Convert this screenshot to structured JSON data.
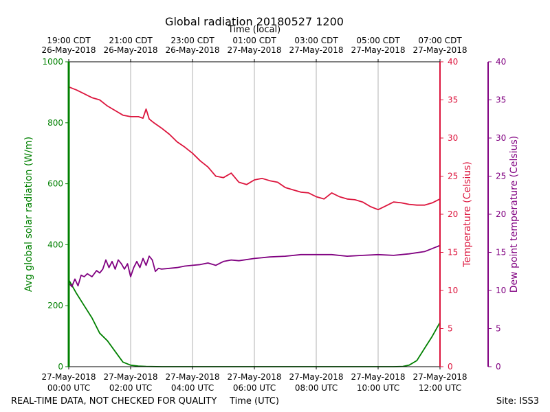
{
  "chart_data": {
    "type": "line",
    "title": "Global radiation 20180527 1200",
    "top_axis_title": "Time (local)",
    "xlabel": "Time (UTC)",
    "footer_left": "REAL-TIME DATA, NOT CHECKED FOR QUALITY",
    "footer_right": "Site: ISS3",
    "x_range_hours": [
      0,
      12
    ],
    "bottom_ticks": [
      {
        "h": 0,
        "date": "27-May-2018",
        "time": "00:00 UTC"
      },
      {
        "h": 2,
        "date": "27-May-2018",
        "time": "02:00 UTC"
      },
      {
        "h": 4,
        "date": "27-May-2018",
        "time": "04:00 UTC"
      },
      {
        "h": 6,
        "date": "27-May-2018",
        "time": "06:00 UTC"
      },
      {
        "h": 8,
        "date": "27-May-2018",
        "time": "08:00 UTC"
      },
      {
        "h": 10,
        "date": "27-May-2018",
        "time": "10:00 UTC"
      },
      {
        "h": 12,
        "date": "27-May-2018",
        "time": "12:00 UTC"
      }
    ],
    "top_ticks": [
      {
        "h": 0,
        "time": "19:00 CDT",
        "date": "26-May-2018"
      },
      {
        "h": 2,
        "time": "21:00 CDT",
        "date": "26-May-2018"
      },
      {
        "h": 4,
        "time": "23:00 CDT",
        "date": "26-May-2018"
      },
      {
        "h": 6,
        "time": "01:00 CDT",
        "date": "27-May-2018"
      },
      {
        "h": 8,
        "time": "03:00 CDT",
        "date": "27-May-2018"
      },
      {
        "h": 10,
        "time": "05:00 CDT",
        "date": "27-May-2018"
      },
      {
        "h": 12,
        "time": "07:00 CDT",
        "date": "27-May-2018"
      }
    ],
    "axes": {
      "radiation": {
        "label": "Avg global solar radiation (W/m)",
        "ylim": [
          0,
          1000
        ],
        "ticks": [
          0,
          200,
          400,
          600,
          800,
          1000
        ],
        "color": "#008000"
      },
      "temperature": {
        "label": "Temperature (Celsius)",
        "ylim": [
          0,
          40
        ],
        "ticks": [
          0,
          5,
          10,
          15,
          20,
          25,
          30,
          35,
          40
        ],
        "color": "#dc143c"
      },
      "dewpoint": {
        "label": "Dew point temperature (Celsius)",
        "ylim": [
          0,
          40
        ],
        "ticks": [
          0,
          5,
          10,
          15,
          20,
          25,
          30,
          35,
          40
        ],
        "color": "#800080"
      }
    },
    "series": [
      {
        "name": "Avg global solar radiation",
        "axis": "radiation",
        "color": "#008000",
        "x": [
          0,
          0.25,
          0.5,
          0.75,
          1.0,
          1.25,
          1.5,
          1.75,
          2.0,
          2.25,
          2.5,
          3,
          4,
          5,
          6,
          7,
          8,
          9,
          10,
          10.5,
          10.8,
          11.0,
          11.25,
          11.5,
          11.75,
          12.0
        ],
        "values": [
          285,
          240,
          200,
          160,
          110,
          85,
          50,
          15,
          5,
          2,
          1,
          0,
          0,
          0,
          0,
          0,
          0,
          0,
          0,
          0,
          1,
          5,
          20,
          60,
          100,
          145
        ]
      },
      {
        "name": "Temperature",
        "axis": "temperature",
        "color": "#dc143c",
        "x": [
          0,
          0.25,
          0.5,
          0.75,
          1.0,
          1.25,
          1.5,
          1.75,
          2.0,
          2.25,
          2.4,
          2.5,
          2.6,
          2.75,
          3.0,
          3.25,
          3.5,
          3.75,
          4.0,
          4.25,
          4.5,
          4.75,
          5.0,
          5.25,
          5.5,
          5.75,
          6.0,
          6.25,
          6.5,
          6.75,
          7.0,
          7.25,
          7.5,
          7.75,
          8.0,
          8.25,
          8.5,
          8.75,
          9.0,
          9.25,
          9.5,
          9.75,
          10.0,
          10.25,
          10.5,
          10.75,
          11.0,
          11.25,
          11.5,
          11.75,
          12.0
        ],
        "values": [
          36.7,
          36.3,
          35.8,
          35.3,
          35.0,
          34.2,
          33.6,
          33.0,
          32.8,
          32.8,
          32.6,
          33.8,
          32.5,
          32.0,
          31.3,
          30.5,
          29.5,
          28.8,
          28.0,
          27.0,
          26.2,
          25.0,
          24.8,
          25.4,
          24.2,
          23.9,
          24.5,
          24.7,
          24.4,
          24.2,
          23.5,
          23.2,
          22.9,
          22.8,
          22.3,
          22.0,
          22.8,
          22.3,
          22.0,
          21.9,
          21.6,
          21.0,
          20.6,
          21.1,
          21.6,
          21.5,
          21.3,
          21.2,
          21.2,
          21.5,
          22.0
        ]
      },
      {
        "name": "Dew point temperature",
        "axis": "dewpoint",
        "color": "#800080",
        "x": [
          0,
          0.1,
          0.2,
          0.3,
          0.4,
          0.5,
          0.6,
          0.75,
          0.9,
          1.0,
          1.1,
          1.2,
          1.3,
          1.4,
          1.5,
          1.6,
          1.7,
          1.8,
          1.9,
          2.0,
          2.1,
          2.2,
          2.3,
          2.4,
          2.5,
          2.6,
          2.7,
          2.8,
          2.9,
          3.0,
          3.25,
          3.5,
          3.75,
          4.0,
          4.25,
          4.5,
          4.75,
          5.0,
          5.25,
          5.5,
          6.0,
          6.5,
          7.0,
          7.5,
          8.0,
          8.5,
          9.0,
          9.5,
          10.0,
          10.5,
          11.0,
          11.5,
          12.0
        ],
        "values": [
          11.0,
          10.5,
          11.5,
          10.6,
          12.0,
          11.8,
          12.2,
          11.8,
          12.6,
          12.3,
          12.8,
          14.0,
          13.0,
          13.8,
          12.8,
          14.0,
          13.5,
          12.8,
          13.5,
          11.8,
          13.0,
          13.8,
          13.0,
          14.2,
          13.3,
          14.5,
          14.0,
          12.5,
          12.9,
          12.8,
          12.9,
          13.0,
          13.2,
          13.3,
          13.4,
          13.6,
          13.3,
          13.8,
          14.0,
          13.9,
          14.2,
          14.4,
          14.5,
          14.7,
          14.7,
          14.7,
          14.5,
          14.6,
          14.7,
          14.6,
          14.8,
          15.1,
          15.9
        ]
      }
    ]
  }
}
